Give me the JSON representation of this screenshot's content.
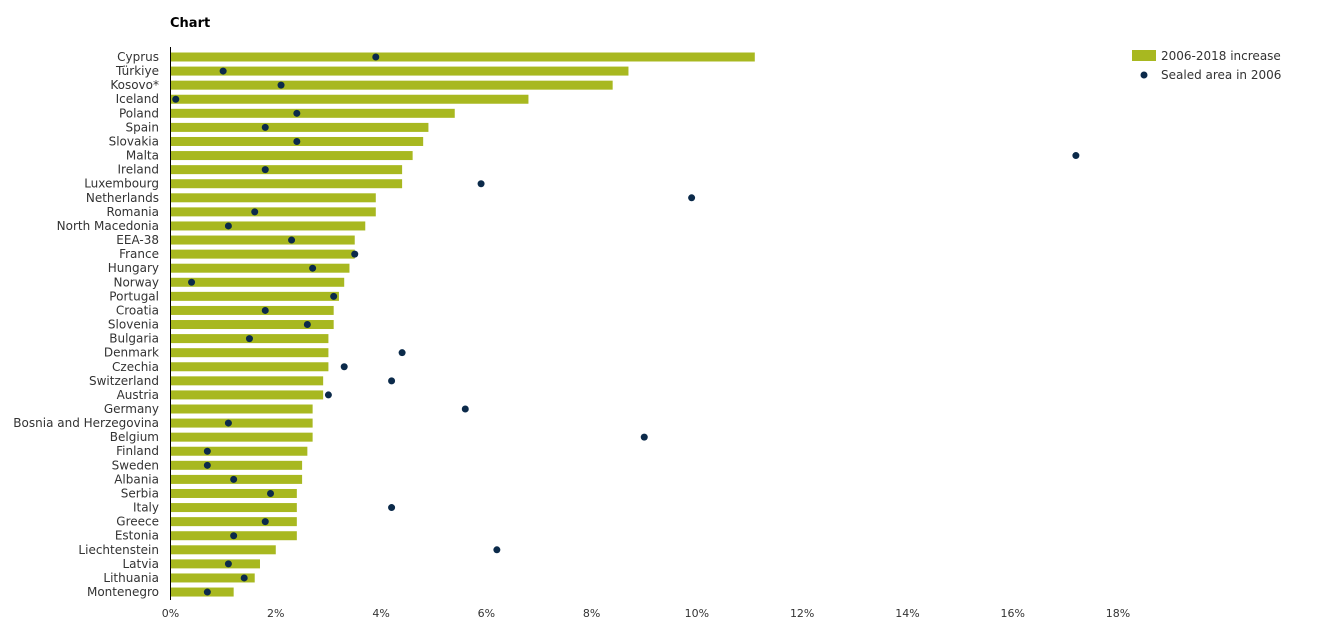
{
  "title": "Chart",
  "chart_data": {
    "type": "bar",
    "orientation": "horizontal",
    "title": "Chart",
    "xlabel": "",
    "ylabel": "",
    "xlim": [
      0,
      18
    ],
    "x_ticks": [
      "0%",
      "2%",
      "4%",
      "6%",
      "8%",
      "10%",
      "12%",
      "14%",
      "16%",
      "18%"
    ],
    "grid": false,
    "legend_position": "top-right",
    "categories": [
      "Cyprus",
      "Türkiye",
      "Kosovo*",
      "Iceland",
      "Poland",
      "Spain",
      "Slovakia",
      "Malta",
      "Ireland",
      "Luxembourg",
      "Netherlands",
      "Romania",
      "North Macedonia",
      "EEA-38",
      "France",
      "Hungary",
      "Norway",
      "Portugal",
      "Croatia",
      "Slovenia",
      "Bulgaria",
      "Denmark",
      "Czechia",
      "Switzerland",
      "Austria",
      "Germany",
      "Bosnia and Herzegovina",
      "Belgium",
      "Finland",
      "Sweden",
      "Albania",
      "Serbia",
      "Italy",
      "Greece",
      "Estonia",
      "Liechtenstein",
      "Latvia",
      "Lithuania",
      "Montenegro"
    ],
    "series": [
      {
        "name": "2006-2018 increase",
        "kind": "bar",
        "color": "#a8b820",
        "values": [
          11.1,
          8.7,
          8.4,
          6.8,
          5.4,
          4.9,
          4.8,
          4.6,
          4.4,
          4.4,
          3.9,
          3.9,
          3.7,
          3.5,
          3.5,
          3.4,
          3.3,
          3.2,
          3.1,
          3.1,
          3.0,
          3.0,
          3.0,
          2.9,
          2.9,
          2.7,
          2.7,
          2.7,
          2.6,
          2.5,
          2.5,
          2.4,
          2.4,
          2.4,
          2.4,
          2.0,
          1.7,
          1.6,
          1.2
        ]
      },
      {
        "name": "Sealed area in 2006",
        "kind": "point",
        "color": "#0b2a4a",
        "values": [
          3.9,
          1.0,
          2.1,
          0.1,
          2.4,
          1.8,
          2.4,
          17.2,
          1.8,
          5.9,
          9.9,
          1.6,
          1.1,
          2.3,
          3.5,
          2.7,
          0.4,
          3.1,
          1.8,
          2.6,
          1.5,
          4.4,
          3.3,
          4.2,
          3.0,
          5.6,
          1.1,
          9.0,
          0.7,
          0.7,
          1.2,
          1.9,
          4.2,
          1.8,
          1.2,
          6.2,
          1.1,
          1.4,
          0.7
        ]
      }
    ]
  }
}
